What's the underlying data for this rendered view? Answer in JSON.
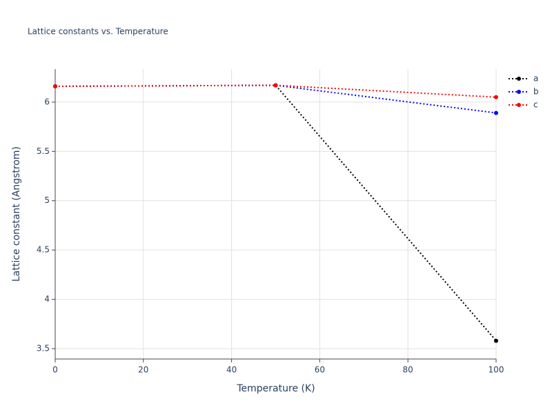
{
  "chart_data": {
    "type": "line",
    "title": "Lattice constants vs. Temperature",
    "x_label": "Temperature (K)",
    "y_label": "Lattice constant (Angstrom)",
    "x": [
      0,
      50,
      100
    ],
    "series": [
      {
        "name": "a",
        "color": "#000000",
        "values": [
          6.16,
          6.17,
          3.58
        ]
      },
      {
        "name": "b",
        "color": "#0000ff",
        "values": [
          6.16,
          6.17,
          5.89
        ]
      },
      {
        "name": "c",
        "color": "#ff0000",
        "values": [
          6.16,
          6.17,
          6.05
        ]
      }
    ],
    "xlim": [
      0,
      100
    ],
    "xticks": [
      0,
      20,
      40,
      60,
      80,
      100
    ],
    "ylim": [
      3.395,
      6.335
    ],
    "yticks": [
      3.5,
      4,
      4.5,
      5,
      5.5,
      6
    ],
    "grid": true,
    "legend": "top-right"
  }
}
